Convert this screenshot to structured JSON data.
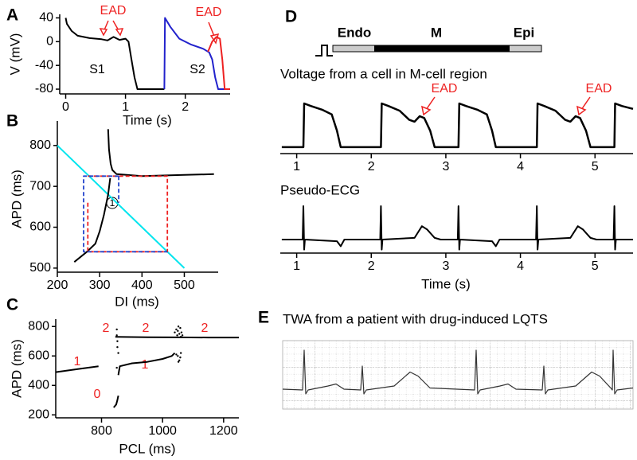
{
  "chart_data": [
    {
      "panel": "A",
      "type": "line",
      "xlabel": "Time (s)",
      "ylabel": "V (mV)",
      "xlim": [
        -0.1,
        2.75
      ],
      "ylim": [
        -88,
        46
      ],
      "xticks": [
        0,
        1,
        2
      ],
      "yticks": [
        40,
        0,
        -40,
        -80
      ],
      "annotations": [
        "EAD",
        "S1",
        "S2",
        "EAD"
      ],
      "series": [
        {
          "color": "#000000",
          "x": [
            0,
            0.02,
            0.1,
            0.2,
            0.4,
            0.6,
            0.7,
            0.8,
            0.9,
            1.0,
            1.05,
            1.1,
            1.15,
            1.2,
            1.65
          ],
          "values": [
            40,
            30,
            18,
            10,
            6,
            4,
            2,
            8,
            3,
            5,
            0,
            -30,
            -60,
            -80,
            -80
          ]
        },
        {
          "color": "#2222cc",
          "x": [
            1.65,
            1.66,
            1.75,
            1.9,
            2.1,
            2.3,
            2.4,
            2.45,
            2.5,
            2.55,
            2.7
          ],
          "values": [
            -80,
            40,
            25,
            5,
            -5,
            -12,
            -18,
            -30,
            -60,
            -80,
            -80
          ]
        },
        {
          "color": "#ee2222",
          "x": [
            2.38,
            2.45,
            2.52,
            2.58,
            2.62,
            2.66,
            2.75
          ],
          "values": [
            -17,
            0,
            8,
            5,
            -30,
            -80,
            -80
          ]
        }
      ]
    },
    {
      "panel": "B",
      "type": "line",
      "xlabel": "DI (ms)",
      "ylabel": "APD (ms)",
      "xlim": [
        200,
        580
      ],
      "ylim": [
        490,
        860
      ],
      "xticks": [
        200,
        300,
        400,
        500
      ],
      "yticks": [
        500,
        600,
        700,
        800
      ],
      "annotations": [
        "1"
      ],
      "series": [
        {
          "color": "#00e5ee",
          "x": [
            200,
            500
          ],
          "values": [
            800,
            500
          ]
        },
        {
          "color": "#000000",
          "x": [
            240,
            270,
            290,
            300,
            310,
            320,
            325
          ],
          "values": [
            515,
            540,
            560,
            590,
            630,
            680,
            720
          ]
        },
        {
          "color": "#000000",
          "x": [
            320,
            322,
            326,
            330,
            340,
            400,
            500,
            570
          ],
          "values": [
            840,
            790,
            755,
            740,
            730,
            725,
            728,
            730
          ]
        },
        {
          "color": "#ee2222",
          "dashed": true,
          "x": [
            272,
            272,
            460,
            460,
            272
          ],
          "values": [
            660,
            540,
            540,
            725,
            725
          ]
        },
        {
          "color": "#2244cc",
          "dashed": true,
          "x": [
            345,
            262,
            262,
            460
          ],
          "values": [
            725,
            725,
            540,
            540
          ]
        },
        {
          "color": "#2244cc",
          "dashed": true,
          "x": [
            345,
            345
          ],
          "values": [
            725,
            660
          ]
        }
      ]
    },
    {
      "panel": "C",
      "type": "line",
      "xlabel": "PCL (ms)",
      "ylabel": "APD (ms)",
      "xlim": [
        650,
        1250
      ],
      "ylim": [
        180,
        850
      ],
      "xticks": [
        800,
        1000,
        1200
      ],
      "yticks": [
        200,
        400,
        600,
        800
      ],
      "annotations": [
        "1",
        "2",
        "2",
        "2",
        "1",
        "0"
      ],
      "series": [
        {
          "color": "#000000",
          "x": [
            650,
            720,
            790
          ],
          "values": [
            490,
            510,
            530
          ]
        },
        {
          "color": "#000000",
          "x": [
            845,
            950,
            1050,
            1150,
            1250
          ],
          "values": [
            730,
            727,
            726,
            725,
            725
          ]
        },
        {
          "color": "#000000",
          "x": [
            855,
            860,
            900,
            950,
            1000,
            1030,
            1040
          ],
          "values": [
            470,
            530,
            550,
            560,
            580,
            600,
            620
          ]
        },
        {
          "color": "#000000",
          "x": [
            840,
            848,
            852,
            855
          ],
          "values": [
            250,
            270,
            300,
            330
          ]
        },
        {
          "color": "#000000",
          "marker": true,
          "x": [
            1040,
            1045,
            1048,
            1050,
            1052,
            1055,
            1058,
            1060,
            1062,
            1065,
            1050,
            1055,
            1060,
            1045,
            1052,
            1058,
            850,
            850,
            852,
            852,
            855,
            850
          ],
          "values": [
            760,
            780,
            740,
            770,
            800,
            750,
            790,
            730,
            760,
            740,
            600,
            570,
            620,
            610,
            560,
            590,
            780,
            740,
            700,
            660,
            620,
            520
          ]
        }
      ]
    },
    {
      "panel": "D",
      "type": "line",
      "title": "Voltage from a cell in M-cell region",
      "diagram_labels": [
        "Endo",
        "M",
        "Epi"
      ],
      "annotations": [
        "EAD",
        "EAD"
      ],
      "xlim": [
        0.78,
        5.51
      ],
      "xticks": [
        1,
        2,
        3,
        4,
        5
      ],
      "series": [
        {
          "color": "#000000",
          "x": [
            0.8,
            1.09,
            1.1,
            1.19,
            1.34,
            1.47,
            1.54,
            1.59,
            2.13,
            2.14,
            2.23,
            2.38,
            2.51,
            2.58,
            2.65,
            2.71,
            2.79,
            2.85,
            3.17,
            3.18,
            3.27,
            3.42,
            3.55,
            3.62,
            3.67,
            4.22,
            4.23,
            4.32,
            4.47,
            4.6,
            4.67,
            4.74,
            4.8,
            4.88,
            4.94,
            5.26,
            5.27,
            5.36,
            5.51
          ],
          "values": [
            -85,
            -85,
            35,
            28,
            18,
            5,
            -40,
            -85,
            -85,
            35,
            28,
            15,
            -10,
            -15,
            0,
            -5,
            -40,
            -85,
            -85,
            35,
            28,
            18,
            5,
            -40,
            -85,
            -85,
            35,
            28,
            15,
            -10,
            -15,
            0,
            -5,
            -40,
            -85,
            -85,
            35,
            28,
            20
          ]
        }
      ]
    },
    {
      "type": "line",
      "title": "Pseudo-ECG",
      "xlabel": "Time (s)",
      "xlim": [
        0.78,
        5.51
      ],
      "xticks": [
        1,
        2,
        3,
        4,
        5
      ],
      "series": [
        {
          "color": "#000000",
          "x": [
            0.8,
            1.08,
            1.09,
            1.1,
            1.11,
            1.54,
            1.59,
            1.64,
            2.12,
            2.13,
            2.14,
            2.15,
            2.58,
            2.68,
            2.75,
            2.85,
            2.93,
            3.16,
            3.17,
            3.18,
            3.19,
            3.62,
            3.67,
            3.72,
            4.21,
            4.22,
            4.23,
            4.24,
            4.67,
            4.77,
            4.84,
            4.94,
            5.02,
            5.25,
            5.26,
            5.27,
            5.28,
            5.51
          ],
          "values": [
            0,
            0,
            1,
            -0.3,
            0,
            -0.05,
            -0.2,
            0,
            0,
            1,
            -0.3,
            0,
            0.05,
            0.4,
            0.3,
            0.05,
            0,
            0,
            1,
            -0.3,
            0,
            -0.05,
            -0.2,
            0,
            0,
            1,
            -0.3,
            0,
            0.05,
            0.4,
            0.3,
            0.05,
            0,
            0,
            1,
            -0.3,
            0,
            0
          ]
        }
      ]
    },
    {
      "panel": "E",
      "type": "line",
      "title": "TWA from a patient with drug-induced LQTS",
      "series": [
        {
          "color": "#333333",
          "x": [
            0,
            0.25,
            0.27,
            0.29,
            0.32,
            0.57,
            0.67,
            0.77,
            0.98,
            1.0,
            1.02,
            1.05,
            1.4,
            1.6,
            1.7,
            1.85,
            2.41,
            2.43,
            2.45,
            2.48,
            2.73,
            2.83,
            2.93,
            3.26,
            3.28,
            3.3,
            3.33,
            3.68,
            3.88,
            3.98,
            4.12,
            4.14,
            4.15,
            4.17,
            4.2,
            4.4
          ],
          "values": [
            0.02,
            0,
            1.0,
            -0.1,
            0,
            0.1,
            0.15,
            0.02,
            0,
            0.6,
            -0.1,
            0,
            0.1,
            0.45,
            0.35,
            0.05,
            0,
            1.0,
            -0.1,
            0,
            0.1,
            0.15,
            0.02,
            0,
            0.6,
            -0.1,
            0,
            0.1,
            0.45,
            0.35,
            0.05,
            0,
            1.0,
            -0.1,
            0,
            0.05
          ]
        }
      ]
    }
  ]
}
